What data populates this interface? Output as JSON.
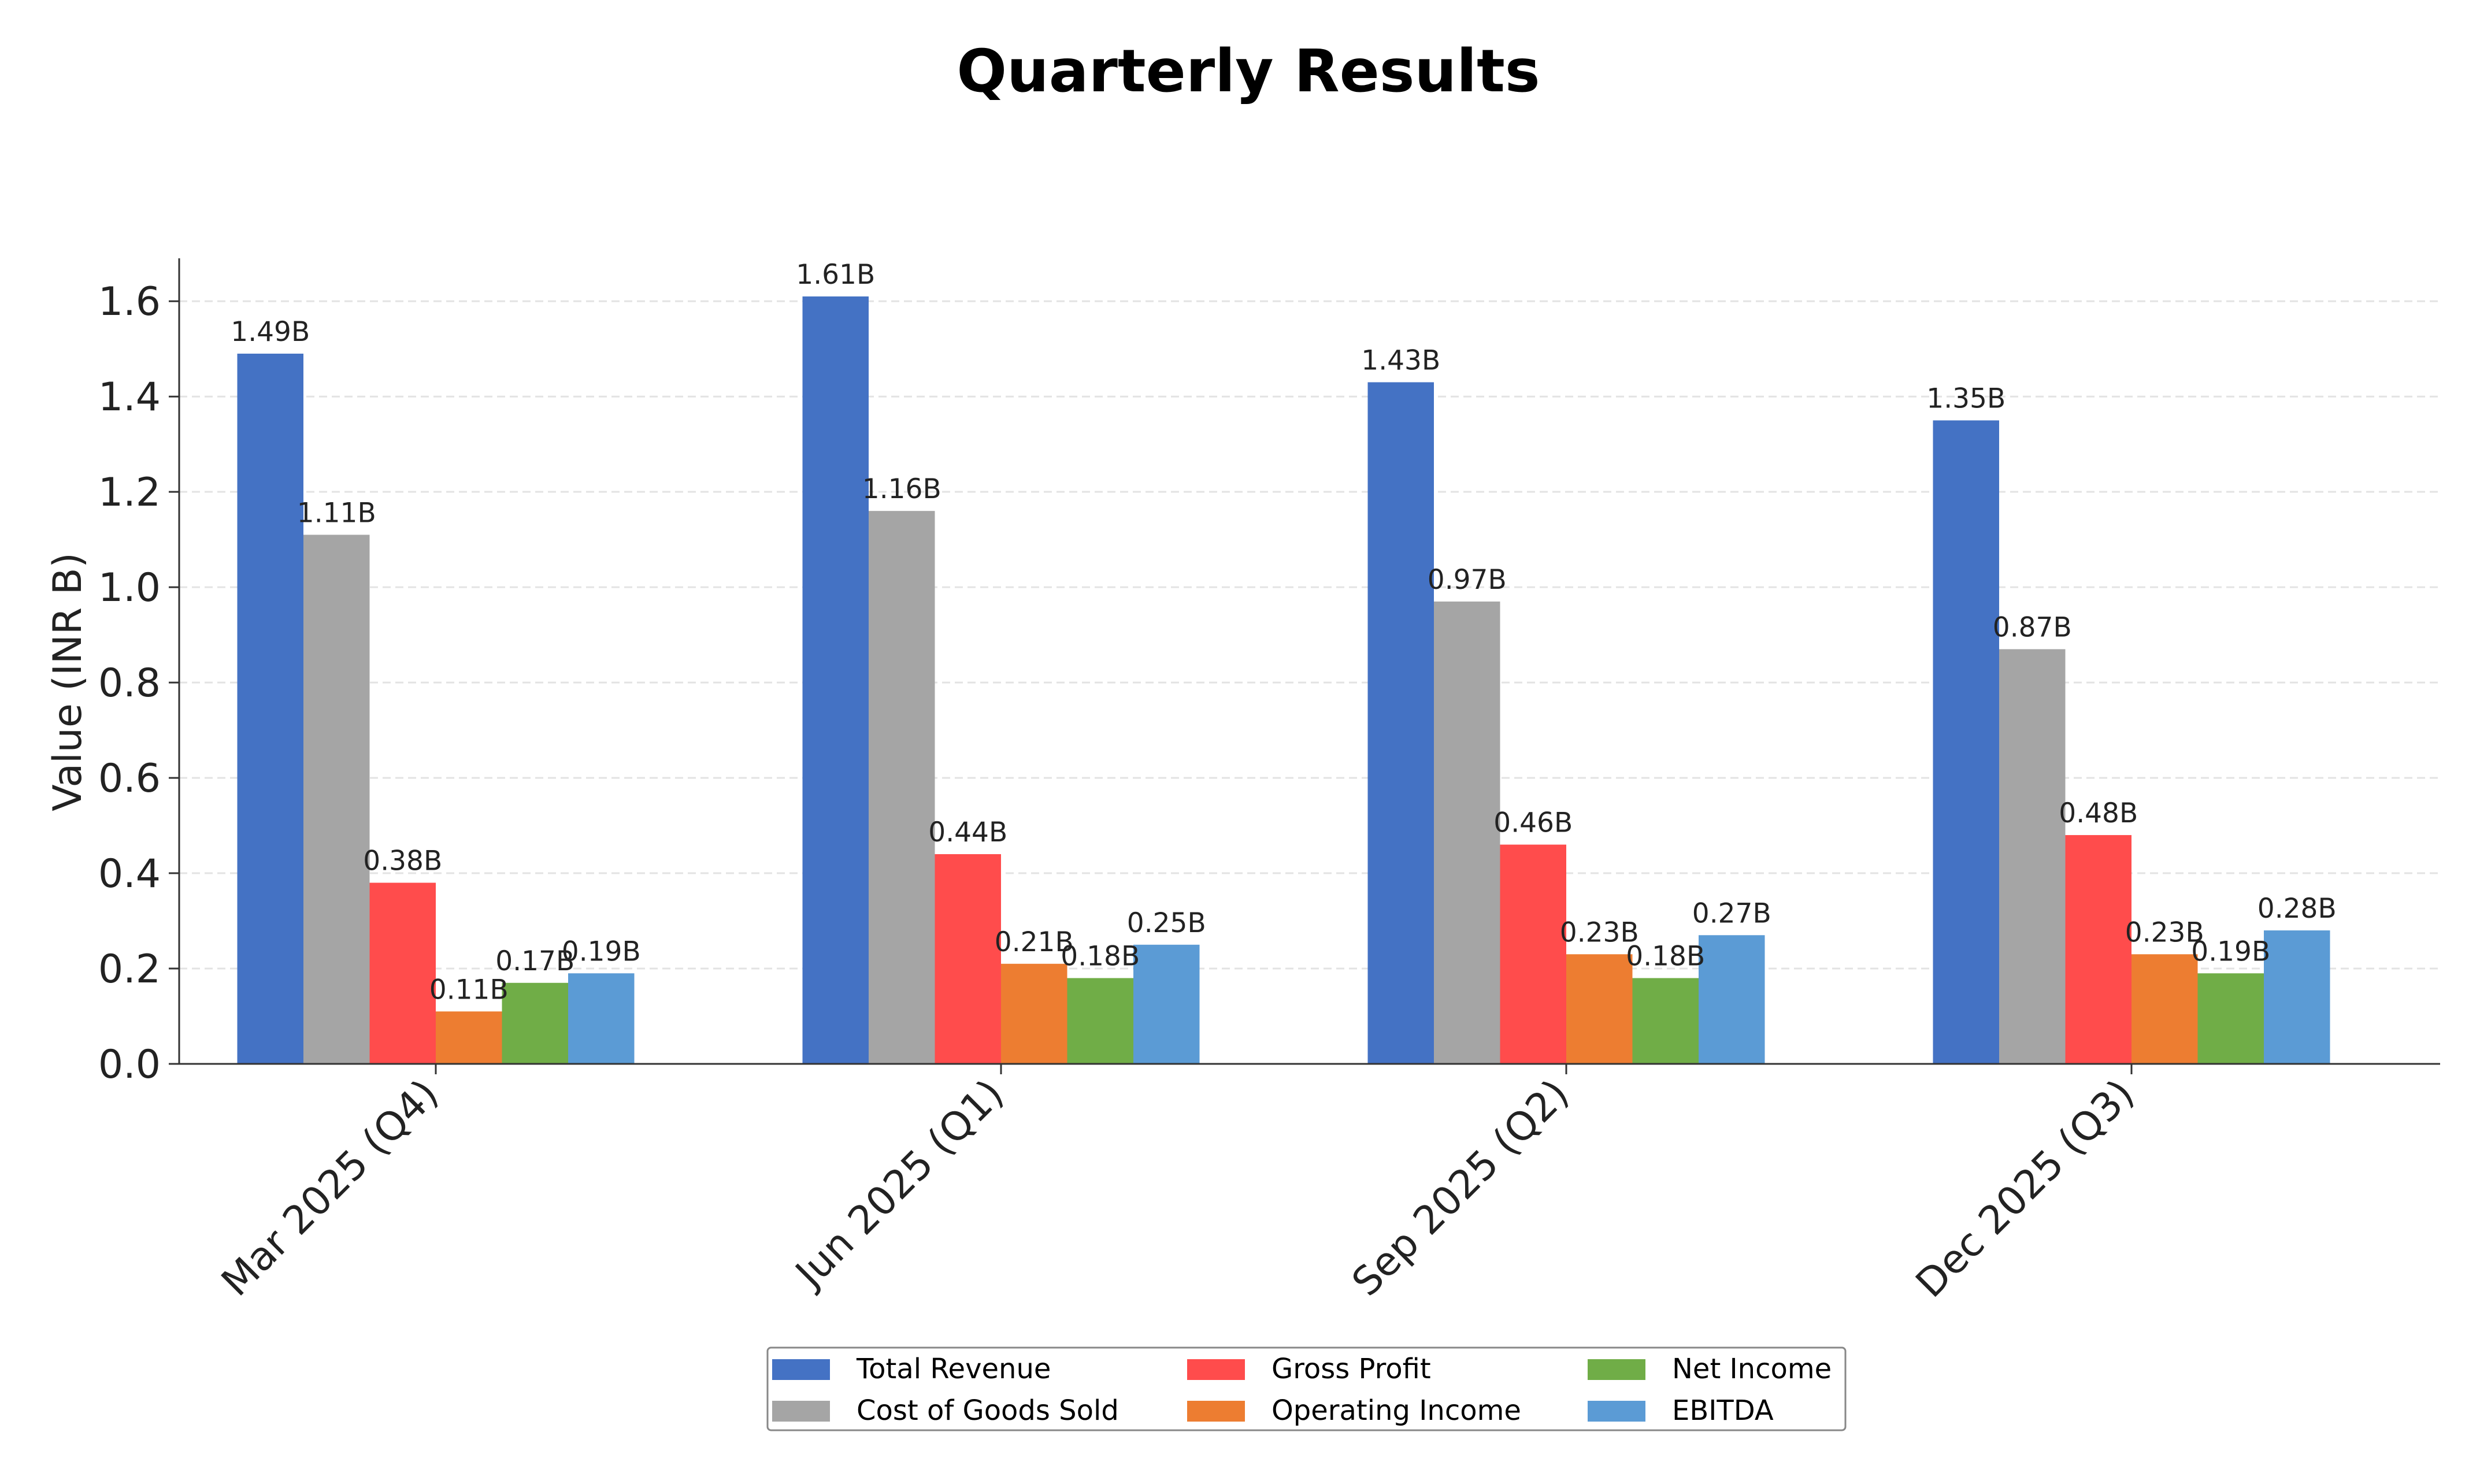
{
  "chart_data": {
    "type": "bar",
    "title": "Quarterly Results",
    "xlabel": "",
    "ylabel": "Value (INR B)",
    "ylim": [
      0,
      1.69
    ],
    "yticks": [
      0.0,
      0.2,
      0.4,
      0.6,
      0.8,
      1.0,
      1.2,
      1.4,
      1.6
    ],
    "ytick_labels": [
      "0.0",
      "0.2",
      "0.4",
      "0.6",
      "0.8",
      "1.0",
      "1.2",
      "1.4",
      "1.6"
    ],
    "grid": true,
    "legend_position": "bottom-center",
    "categories": [
      "Mar 2025 (Q4)",
      "Jun 2025 (Q1)",
      "Sep 2025 (Q2)",
      "Dec 2025 (Q3)"
    ],
    "series": [
      {
        "name": "Total Revenue",
        "color": "#4472c4",
        "values": [
          1.49,
          1.61,
          1.43,
          1.35
        ],
        "labels": [
          "1.49B",
          "1.61B",
          "1.43B",
          "1.35B"
        ]
      },
      {
        "name": "Cost of Goods Sold",
        "color": "#a5a5a5",
        "values": [
          1.11,
          1.16,
          0.97,
          0.87
        ],
        "labels": [
          "1.11B",
          "1.16B",
          "0.97B",
          "0.87B"
        ]
      },
      {
        "name": "Gross Profit",
        "color": "#ff4c4c",
        "values": [
          0.38,
          0.44,
          0.46,
          0.48
        ],
        "labels": [
          "0.38B",
          "0.44B",
          "0.46B",
          "0.48B"
        ]
      },
      {
        "name": "Operating Income",
        "color": "#ed7d31",
        "values": [
          0.11,
          0.21,
          0.23,
          0.23
        ],
        "labels": [
          "0.11B",
          "0.21B",
          "0.23B",
          "0.23B"
        ]
      },
      {
        "name": "Net Income",
        "color": "#70ad47",
        "values": [
          0.17,
          0.18,
          0.18,
          0.19
        ],
        "labels": [
          "0.17B",
          "0.18B",
          "0.18B",
          "0.19B"
        ]
      },
      {
        "name": "EBITDA",
        "color": "#5b9bd5",
        "values": [
          0.19,
          0.25,
          0.27,
          0.28
        ],
        "labels": [
          "0.19B",
          "0.25B",
          "0.27B",
          "0.28B"
        ]
      }
    ]
  }
}
